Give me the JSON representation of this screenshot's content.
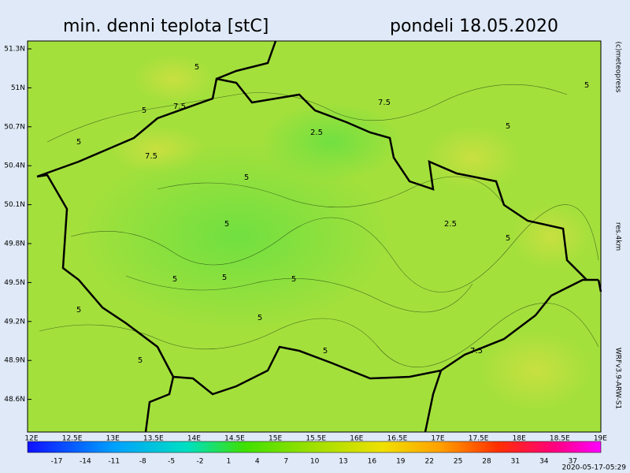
{
  "header": {
    "title": "min. denni teplota [stC]",
    "date": "pondeli 18.05.2020"
  },
  "side": {
    "copyright": "(c)meteopress",
    "resolution": "res.4km",
    "model": "WRFv3.9-ARW-S1",
    "timestamp": "2020-05-17-05:29"
  },
  "lat_labels": [
    "51.3N",
    "51N",
    "50.7N",
    "50.4N",
    "50.1N",
    "49.8N",
    "49.5N",
    "49.2N",
    "48.9N",
    "48.6N"
  ],
  "lon_labels": [
    "12E",
    "12.5E",
    "13E",
    "13.5E",
    "14E",
    "14.5E",
    "15E",
    "15.5E",
    "16E",
    "16.5E",
    "17E",
    "17.5E",
    "18E",
    "18.5E",
    "19E"
  ],
  "scale_labels": [
    "-17",
    "-14",
    "-11",
    "-8",
    "-5",
    "-2",
    "1",
    "4",
    "7",
    "10",
    "13",
    "16",
    "19",
    "22",
    "25",
    "28",
    "31",
    "34",
    "37"
  ],
  "contour_labels": [
    "5",
    "7.5",
    "5",
    "5",
    "7.5",
    "2.5",
    "7.5",
    "5",
    "5",
    "5",
    "2.5",
    "5",
    "5",
    "5",
    "5",
    "5",
    "5",
    "5",
    "5",
    "7.5",
    "5"
  ]
}
